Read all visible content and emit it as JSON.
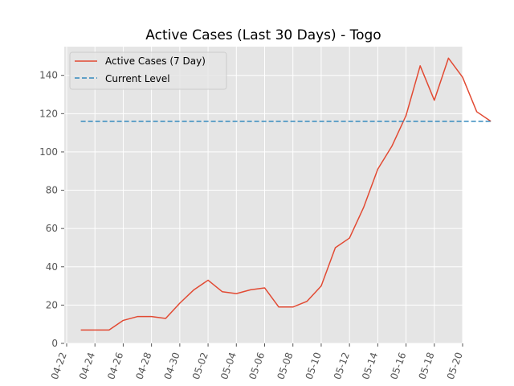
{
  "chart_data": {
    "type": "line",
    "title": "Active Cases (Last 30 Days) - Togo",
    "xlabel": "",
    "ylabel": "",
    "x_start": "2020-04-23",
    "x_ticks": [
      "04-22",
      "04-24",
      "04-26",
      "04-28",
      "04-30",
      "05-02",
      "05-04",
      "05-06",
      "05-08",
      "05-10",
      "05-12",
      "05-14",
      "05-16",
      "05-18",
      "05-20"
    ],
    "ylim": [
      0,
      155
    ],
    "y_ticks": [
      0,
      20,
      40,
      60,
      80,
      100,
      120,
      140
    ],
    "grid": true,
    "legend_position": "upper-left",
    "series": [
      {
        "name": "Active Cases (7 Day)",
        "color": "#e24a33",
        "style": "solid",
        "values": [
          7,
          7,
          7,
          12,
          14,
          14,
          13,
          21,
          28,
          33,
          27,
          26,
          28,
          29,
          19,
          19,
          22,
          30,
          50,
          55,
          71,
          91,
          103,
          119,
          145,
          127,
          149,
          139,
          121,
          116
        ]
      },
      {
        "name": "Current Level",
        "color": "#348abd",
        "style": "dashed",
        "values": [
          116,
          116,
          116,
          116,
          116,
          116,
          116,
          116,
          116,
          116,
          116,
          116,
          116,
          116,
          116,
          116,
          116,
          116,
          116,
          116,
          116,
          116,
          116,
          116,
          116,
          116,
          116,
          116,
          116,
          116
        ]
      }
    ]
  }
}
